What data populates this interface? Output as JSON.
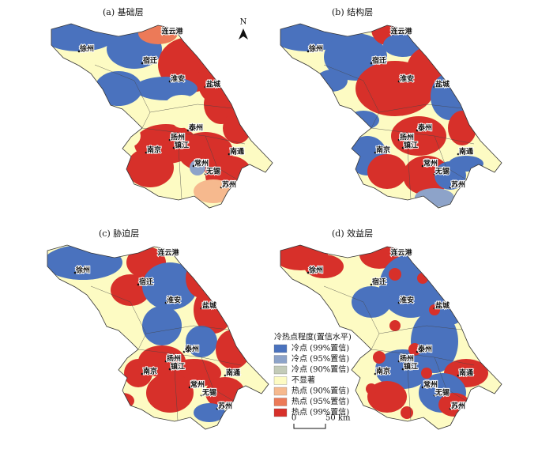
{
  "legend": {
    "title": "冷热点程度(置信水平)",
    "items": [
      {
        "label": "冷点 (99%置信)",
        "color": "#4a72be"
      },
      {
        "label": "冷点 (95%置信)",
        "color": "#8da3c9"
      },
      {
        "label": "冷点 (90%置信)",
        "color": "#c3cbb8"
      },
      {
        "label": "不显著",
        "color": "#fdfbc3"
      },
      {
        "label": "热点 (90%置信)",
        "color": "#f6b98e"
      },
      {
        "label": "热点 (95%置信)",
        "color": "#ec7a58"
      },
      {
        "label": "热点 (99%置信)",
        "color": "#d7302a"
      }
    ]
  },
  "north": "N",
  "scale_bar": {
    "start": "0",
    "end": "50 km"
  },
  "panels": [
    {
      "title": "(a) 基础层",
      "cities": [
        "连云港",
        "徐州",
        "宿迁",
        "淮安",
        "盐城",
        "泰州",
        "扬州",
        "镇江",
        "南京",
        "南通",
        "常州",
        "无锡",
        "苏州"
      ]
    },
    {
      "title": "(b) 结构层",
      "cities": [
        "连云港",
        "徐州",
        "宿迁",
        "淮安",
        "盐城",
        "泰州",
        "扬州",
        "镇江",
        "南京",
        "南通",
        "常州",
        "无锡",
        "苏州"
      ]
    },
    {
      "title": "(c) 胁迫层",
      "cities": [
        "连云港",
        "徐州",
        "宿迁",
        "淮安",
        "盐城",
        "泰州",
        "扬州",
        "镇江",
        "南京",
        "南通",
        "常州",
        "无锡",
        "苏州"
      ]
    },
    {
      "title": "(d) 效益层",
      "cities": [
        "连云港",
        "徐州",
        "宿迁",
        "淮安",
        "盐城",
        "泰州",
        "扬州",
        "镇江",
        "南京",
        "南通",
        "常州",
        "无锡",
        "苏州"
      ]
    }
  ]
}
